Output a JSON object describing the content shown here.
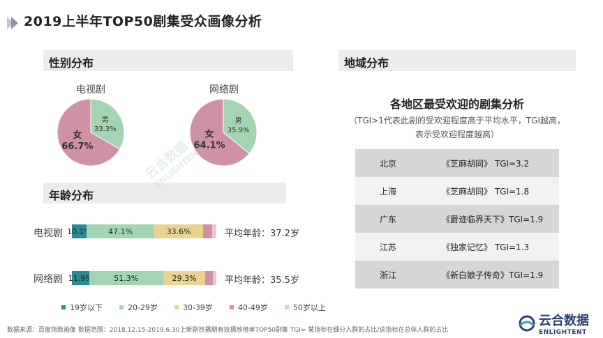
{
  "title": "2019上半年TOP50剧集受众画像分析",
  "sections": {
    "gender": "性别分布",
    "age": "年龄分布",
    "region": "地域分布"
  },
  "chart_data": [
    {
      "type": "pie",
      "title": "电视剧",
      "slices": [
        {
          "label": "女",
          "value_label": "66.7%",
          "value": 66.7,
          "color": "#cf92a5"
        },
        {
          "label": "男",
          "value_label": "33.3%",
          "value": 33.3,
          "color": "#a3d5b2"
        }
      ]
    },
    {
      "type": "pie",
      "title": "网络剧",
      "slices": [
        {
          "label": "女",
          "value_label": "64.1%",
          "value": 64.1,
          "color": "#cf92a5"
        },
        {
          "label": "男",
          "value_label": "35.9%",
          "value": 35.9,
          "color": "#a3d5b2"
        }
      ]
    },
    {
      "type": "bar",
      "orientation": "horizontal-stacked",
      "categories": [
        "电视剧",
        "网络剧"
      ],
      "series": [
        {
          "name": "19岁以下",
          "color": "#2a8b94",
          "values": [
            10.1,
            11.9
          ],
          "labels": [
            "10.1%",
            "11.9%"
          ]
        },
        {
          "name": "20-29岁",
          "color": "#a3d5b2",
          "values": [
            47.1,
            51.3
          ],
          "labels": [
            "47.1%",
            "51.3%"
          ]
        },
        {
          "name": "30-39岁",
          "color": "#e9d38e",
          "values": [
            33.6,
            29.3
          ],
          "labels": [
            "33.6%",
            "29.3%"
          ]
        },
        {
          "name": "40-49岁",
          "color": "#cf92a5",
          "values": [
            6.3,
            5.2
          ],
          "labels": [
            "",
            ""
          ]
        },
        {
          "name": "50岁以上",
          "color": "#f0c7d0",
          "values": [
            2.9,
            2.3
          ],
          "labels": [
            "",
            ""
          ]
        }
      ],
      "annotations": [
        "平均年龄：37.2岁",
        "平均年龄：35.5岁"
      ]
    },
    {
      "type": "table",
      "title": "各地区最受欢迎的剧集分析",
      "subtitle_lines": [
        "（TGI>1代表此剧的受欢迎程度高于平均水平，TGI越高，",
        "表示受欢迎程度越高）"
      ],
      "rows": [
        {
          "city": "北京",
          "show": "《芝麻胡同》 TGI=3.2"
        },
        {
          "city": "上海",
          "show": "《芝麻胡同》  TGI=1.8"
        },
        {
          "city": "广东",
          "show": "《爵迹临界天下》TGI=1.9"
        },
        {
          "city": "江苏",
          "show": "《独家记忆》 TGI=1.3"
        },
        {
          "city": "浙江",
          "show": "《新白娘子传奇》TGI=1.9"
        }
      ]
    }
  ],
  "footer": "数据来源：百度指数画像   数据范围：2018.12.15-2019.6.30上新剧热播期有效播放榜单TOP50剧集   TGI= 某指标在细分人群的占比/该指标在总体人群的占比",
  "brand": {
    "cn": "云合数据",
    "en": "ENLIGHTENT"
  },
  "watermark": {
    "cn": "云合数据",
    "en": "ENLIGHTENT"
  },
  "colors": {
    "accent": "#2a3f73"
  }
}
